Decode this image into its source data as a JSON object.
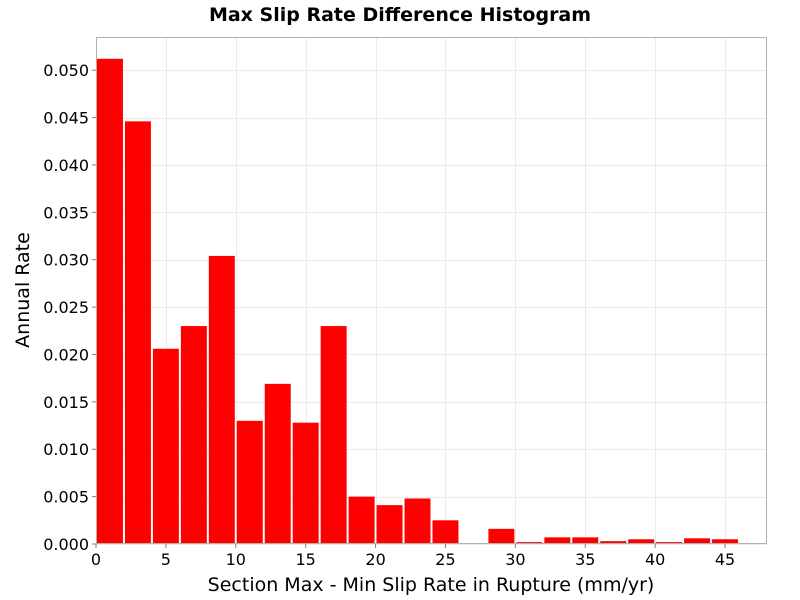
{
  "chart_data": {
    "type": "bar",
    "title": "Max Slip Rate Difference Histogram",
    "xlabel": "Section Max - Min Slip Rate in Rupture (mm/yr)",
    "ylabel": "Annual Rate",
    "xlim": [
      0,
      48
    ],
    "ylim": [
      0,
      0.0535
    ],
    "bin_width": 2,
    "x_ticks": [
      0,
      5,
      10,
      15,
      20,
      25,
      30,
      35,
      40,
      45
    ],
    "x_tick_labels": [
      "0",
      "5",
      "10",
      "15",
      "20",
      "25",
      "30",
      "35",
      "40",
      "45"
    ],
    "y_ticks": [
      0,
      0.005,
      0.01,
      0.015,
      0.02,
      0.025,
      0.03,
      0.035,
      0.04,
      0.045,
      0.05
    ],
    "y_tick_labels": [
      "0.000",
      "0.005",
      "0.010",
      "0.015",
      "0.020",
      "0.025",
      "0.030",
      "0.035",
      "0.040",
      "0.045",
      "0.050"
    ],
    "grid": true,
    "legend": "none",
    "series": [
      {
        "color": "#ff0000",
        "x": [
          1,
          3,
          5,
          7,
          9,
          11,
          13,
          15,
          17,
          19,
          21,
          23,
          25,
          27,
          29,
          31,
          33,
          35,
          37,
          39,
          41,
          43,
          45,
          47
        ],
        "values": [
          0.0512,
          0.0446,
          0.0206,
          0.023,
          0.0304,
          0.013,
          0.0169,
          0.0128,
          0.023,
          0.005,
          0.0041,
          0.0048,
          0.0025,
          0.0,
          0.0016,
          0.0002,
          0.0007,
          0.0007,
          0.0003,
          0.0005,
          0.0002,
          0.0006,
          0.0005,
          0.0
        ]
      }
    ]
  }
}
